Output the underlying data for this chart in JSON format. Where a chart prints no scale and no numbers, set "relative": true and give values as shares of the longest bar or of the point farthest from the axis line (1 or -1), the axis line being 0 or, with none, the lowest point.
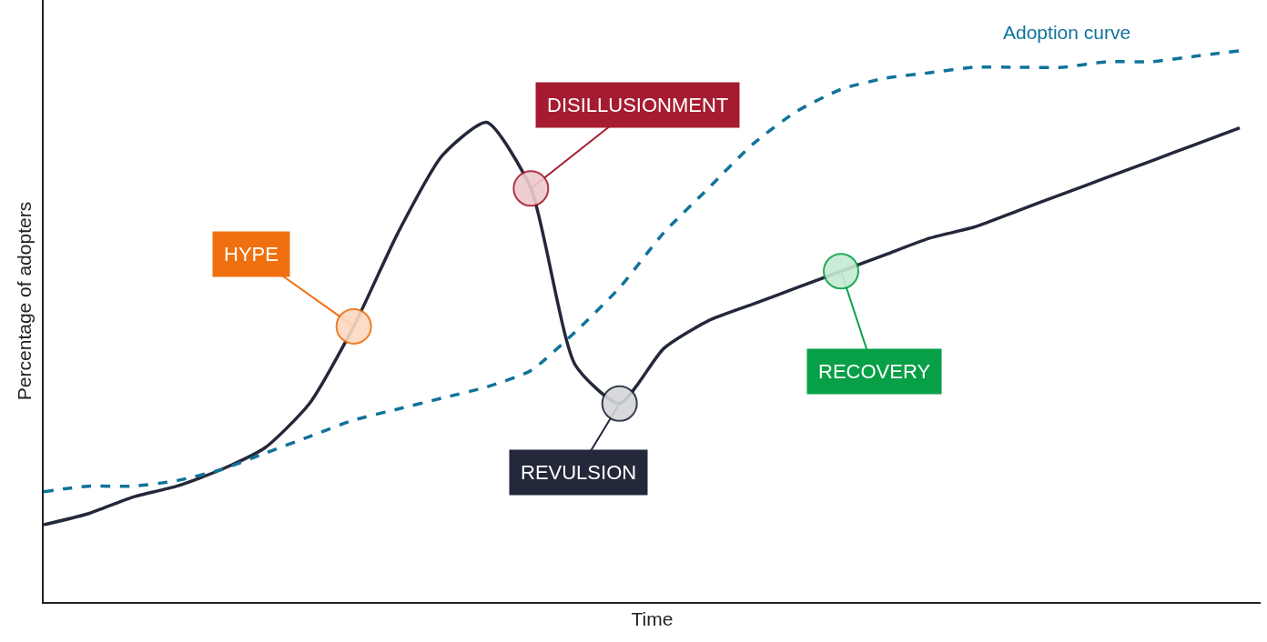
{
  "chart_data": {
    "type": "line",
    "relative": true,
    "xlabel": "Time",
    "ylabel": "Percentage of adopters",
    "categories": [
      null,
      null,
      null,
      null,
      null,
      null,
      null,
      null,
      null,
      null,
      null,
      null,
      null,
      null,
      null,
      null,
      null,
      null,
      null,
      null,
      null,
      null,
      null,
      null,
      null,
      null,
      null,
      null
    ],
    "series": [
      {
        "color": "#23283a",
        "line_style": "solid",
        "values": [
          0.14,
          0.16,
          0.19,
          0.21,
          0.24,
          0.28,
          0.36,
          0.5,
          0.67,
          0.81,
          0.87,
          0.75,
          0.43,
          0.36,
          0.46,
          0.51,
          0.54,
          0.57,
          0.6,
          0.63,
          0.66,
          0.68,
          0.71,
          0.74,
          0.77,
          0.8,
          0.83,
          0.86
        ]
      },
      {
        "name": "Adoption curve",
        "color": "#10739a",
        "line_style": "dashed",
        "values": [
          0.2,
          0.21,
          0.21,
          0.22,
          0.24,
          0.27,
          0.3,
          0.33,
          0.35,
          0.37,
          0.39,
          0.42,
          0.49,
          0.57,
          0.67,
          0.75,
          0.83,
          0.89,
          0.93,
          0.95,
          0.96,
          0.97,
          0.97,
          0.97,
          0.98,
          0.98,
          0.99,
          1.0
        ]
      }
    ],
    "annotations": [
      "HYPE",
      "DISILLUSIONMENT",
      "REVULSION",
      "RECOVERY"
    ],
    "legend": false,
    "grid": false,
    "marker": "none"
  }
}
